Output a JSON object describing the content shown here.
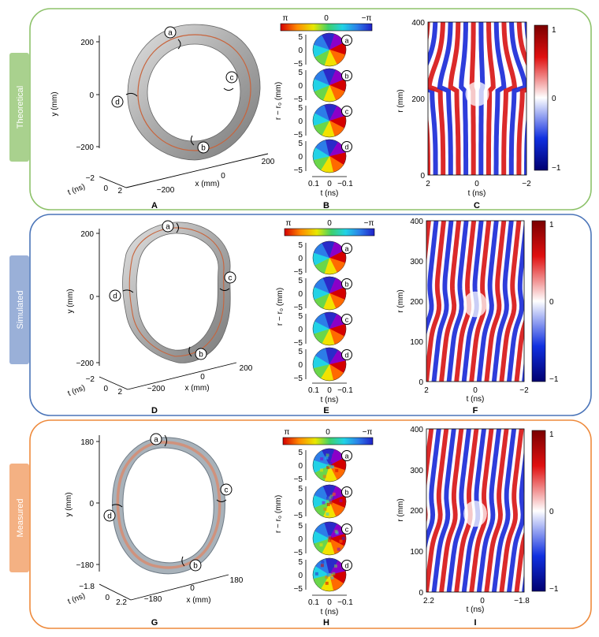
{
  "rows": [
    {
      "tag": "Theoretical",
      "border": "#8dc26a",
      "tag_bg": "#a9d18e",
      "ring": {
        "kind": "theory",
        "y_ticks": [
          "200",
          "0",
          "−200"
        ],
        "y_label": "y (mm)",
        "t_ticks": [
          "−2",
          "0",
          "2"
        ],
        "t_label": "t (ns)",
        "x_ticks": [
          "−200",
          "0",
          "200"
        ],
        "x_label": "x (mm)",
        "markers": [
          "a",
          "b",
          "c",
          "d"
        ]
      },
      "phase": {
        "bar_labels": [
          "π",
          "0",
          "−π"
        ],
        "y_label": "r − r₀ (mm)",
        "y_ticks": [
          "5",
          "0",
          "−5"
        ],
        "t_ticks": [
          "0.1",
          "0",
          "−0.1"
        ],
        "t_label": "t (ns)",
        "noisy": false
      },
      "field": {
        "y_ticks": [
          "400",
          "200",
          "0"
        ],
        "y_label": "r (mm)",
        "x_ticks": [
          "2",
          "0",
          "−2"
        ],
        "x_label": "t (ns)",
        "cb_ticks": [
          "1",
          "0",
          "−1"
        ],
        "model": "theory"
      },
      "panels": [
        "A",
        "B",
        "C"
      ]
    },
    {
      "tag": "Simulated",
      "border": "#4a74b8",
      "tag_bg": "#9ab0d8",
      "ring": {
        "kind": "sim",
        "y_ticks": [
          "200",
          "0",
          "−200"
        ],
        "y_label": "y (mm)",
        "t_ticks": [
          "−2",
          "0",
          "2"
        ],
        "t_label": "t (ns)",
        "x_ticks": [
          "−200",
          "0",
          "200"
        ],
        "x_label": "x (mm)",
        "markers": [
          "a",
          "b",
          "c",
          "d"
        ]
      },
      "phase": {
        "bar_labels": [
          "π",
          "0",
          "−π"
        ],
        "y_label": "r − r₀ (mm)",
        "y_ticks": [
          "5",
          "0",
          "−5"
        ],
        "t_ticks": [
          "0.1",
          "0",
          "−0.1"
        ],
        "t_label": "t (ns)",
        "noisy": false
      },
      "field": {
        "y_ticks": [
          "400",
          "300",
          "200",
          "100",
          "0"
        ],
        "y_label": "r (mm)",
        "x_ticks": [
          "2",
          "0",
          "−2"
        ],
        "x_label": "t (ns)",
        "cb_ticks": [
          "1",
          "0",
          "−1"
        ],
        "model": "sim"
      },
      "panels": [
        "D",
        "E",
        "F"
      ]
    },
    {
      "tag": "Measured",
      "border": "#ee8a3c",
      "tag_bg": "#f4b183",
      "ring": {
        "kind": "meas",
        "y_ticks": [
          "180",
          "0",
          "−180"
        ],
        "y_label": "y (mm)",
        "t_ticks": [
          "−1.8",
          "0",
          "2.2"
        ],
        "t_label": "t (ns)",
        "x_ticks": [
          "−180",
          "0",
          "180"
        ],
        "x_label": "x (mm)",
        "markers": [
          "a",
          "b",
          "c",
          "d"
        ]
      },
      "phase": {
        "bar_labels": [
          "π",
          "0",
          "−π"
        ],
        "y_label": "r − r₀ (mm)",
        "y_ticks": [
          "5",
          "0",
          "−5"
        ],
        "t_ticks": [
          "0.1",
          "0",
          "−0.1"
        ],
        "t_label": "t (ns)",
        "noisy": true
      },
      "field": {
        "y_ticks": [
          "400",
          "300",
          "200",
          "100",
          "0"
        ],
        "y_label": "r (mm)",
        "x_ticks": [
          "2.2",
          "0",
          "−1.8"
        ],
        "x_label": "t (ns)",
        "cb_ticks": [
          "1",
          "0",
          "−1"
        ],
        "model": "meas"
      },
      "panels": [
        "G",
        "H",
        "I"
      ]
    }
  ]
}
